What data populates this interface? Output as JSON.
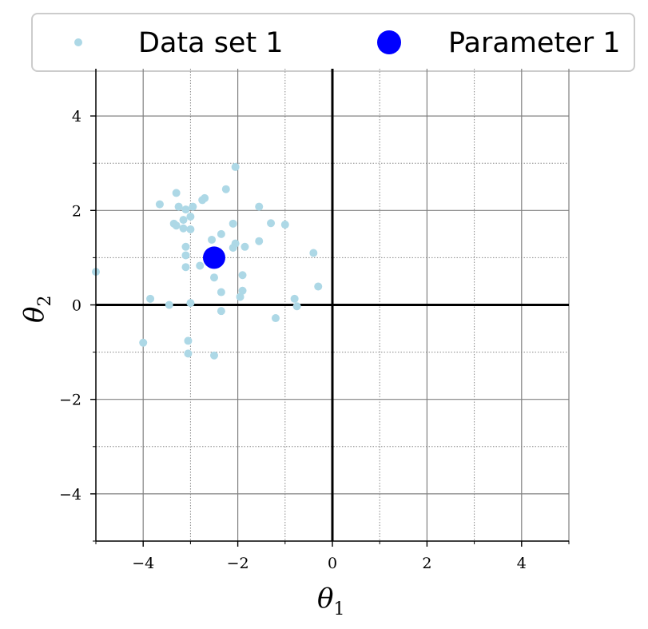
{
  "chart_data": {
    "type": "scatter",
    "xlabel": "θ",
    "xlabel_sub": "1",
    "ylabel": "θ",
    "ylabel_sub": "2",
    "xlim": [
      -5,
      5
    ],
    "ylim": [
      -5,
      5
    ],
    "major_ticks": [
      -4,
      -2,
      0,
      2,
      4
    ],
    "x_tick_labels": [
      "−4",
      "−2",
      "0",
      "2",
      "4"
    ],
    "y_tick_labels": [
      "4",
      "2",
      "0",
      "−2",
      "−4"
    ],
    "minor_ticks": [
      -3,
      -1,
      1,
      3
    ],
    "grid": true,
    "legend_position": "top, above plot",
    "series": [
      {
        "name": "Data set 1",
        "color": "#add8e6",
        "marker": "small-circle",
        "points": [
          [
            -2.05,
            2.92
          ],
          [
            -3.65,
            2.13
          ],
          [
            -3.3,
            2.37
          ],
          [
            -3.25,
            2.08
          ],
          [
            -3.1,
            2.02
          ],
          [
            -2.95,
            2.08
          ],
          [
            -2.75,
            2.22
          ],
          [
            -2.7,
            2.26
          ],
          [
            -2.25,
            2.45
          ],
          [
            -1.55,
            2.08
          ],
          [
            -3.15,
            1.8
          ],
          [
            -3.0,
            1.87
          ],
          [
            -3.35,
            1.72
          ],
          [
            -3.3,
            1.68
          ],
          [
            -3.15,
            1.62
          ],
          [
            -3.0,
            1.6
          ],
          [
            -2.35,
            1.5
          ],
          [
            -2.1,
            1.72
          ],
          [
            -1.3,
            1.73
          ],
          [
            -1.0,
            1.7
          ],
          [
            -2.55,
            1.38
          ],
          [
            -2.05,
            1.3
          ],
          [
            -2.1,
            1.21
          ],
          [
            -1.85,
            1.23
          ],
          [
            -1.55,
            1.35
          ],
          [
            -3.1,
            1.23
          ],
          [
            -3.1,
            1.05
          ],
          [
            -3.1,
            0.8
          ],
          [
            -2.8,
            0.83
          ],
          [
            -0.4,
            1.1
          ],
          [
            -2.5,
            0.58
          ],
          [
            -1.9,
            0.63
          ],
          [
            -1.9,
            0.3
          ],
          [
            -1.95,
            0.17
          ],
          [
            -2.35,
            0.27
          ],
          [
            -0.8,
            0.13
          ],
          [
            -0.3,
            0.39
          ],
          [
            -3.85,
            0.13
          ],
          [
            -3.45,
            0.0
          ],
          [
            -3.0,
            0.04
          ],
          [
            -0.75,
            -0.03
          ],
          [
            -2.35,
            -0.13
          ],
          [
            -1.2,
            -0.28
          ],
          [
            -4.0,
            -0.8
          ],
          [
            -3.05,
            -0.76
          ],
          [
            -3.05,
            -1.03
          ],
          [
            -2.5,
            -1.07
          ],
          [
            -5.0,
            0.7
          ]
        ]
      },
      {
        "name": "Parameter 1",
        "color": "#0000ff",
        "marker": "large-circle",
        "points": [
          [
            -2.5,
            1.0
          ]
        ]
      }
    ]
  }
}
